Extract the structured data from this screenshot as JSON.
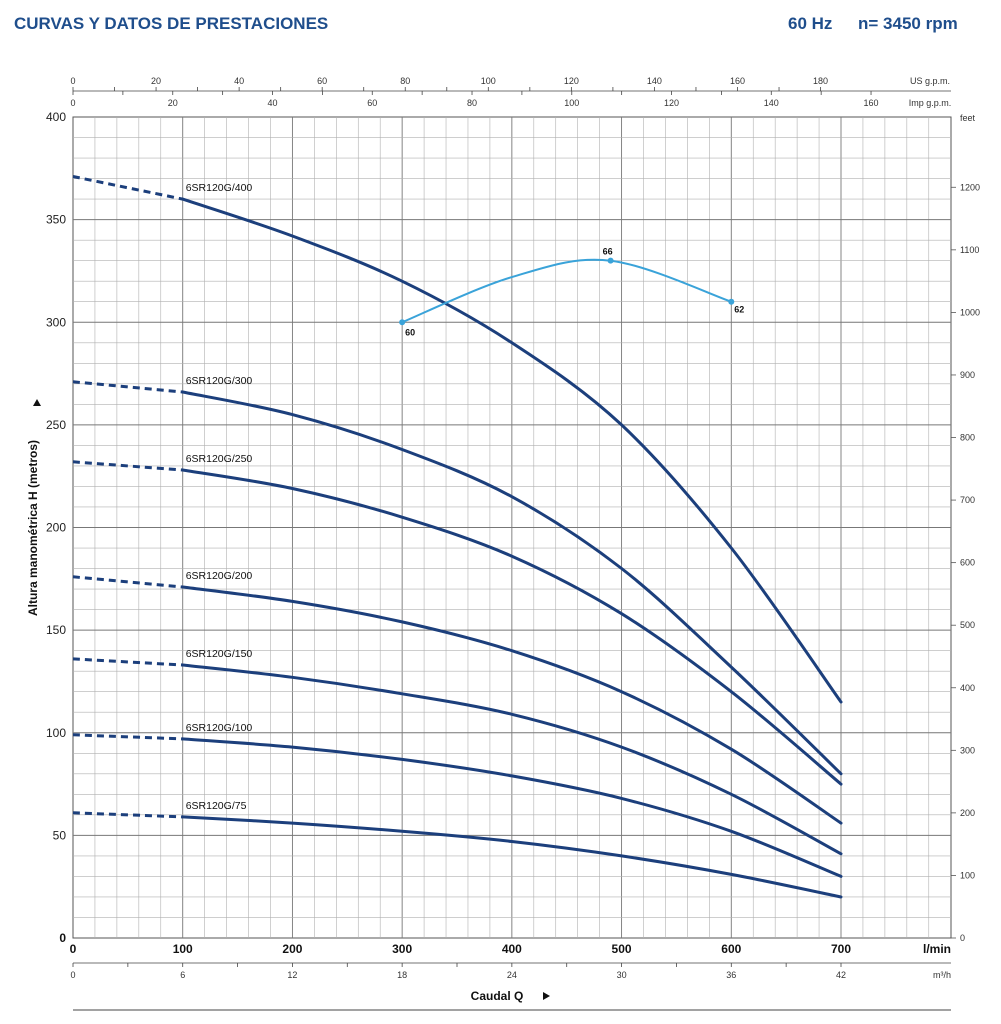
{
  "header": {
    "title": "CURVAS Y DATOS DE PRESTACIONES",
    "frequency": "60 Hz",
    "speed": "n= 3450 rpm"
  },
  "chart_data": {
    "type": "line",
    "xlabel": "Caudal  Q",
    "ylabel": "Altura manométrica H (metros)",
    "x_unit": "l/min",
    "xlim": [
      0,
      700
    ],
    "ylim": [
      0,
      400
    ],
    "x_ticks": [
      0,
      100,
      200,
      300,
      400,
      500,
      600,
      700
    ],
    "y_ticks": [
      0,
      50,
      100,
      150,
      200,
      250,
      300,
      350,
      400
    ],
    "secondary_axes": {
      "m3h": {
        "unit": "m³/h",
        "ticks": [
          0,
          6,
          12,
          18,
          24,
          30,
          36,
          42
        ]
      },
      "us_gpm": {
        "unit": "US g.p.m.",
        "ticks": [
          0,
          20,
          40,
          60,
          80,
          100,
          120,
          140,
          160,
          180
        ]
      },
      "imp_gpm": {
        "unit": "Imp g.p.m.",
        "ticks": [
          0,
          20,
          40,
          60,
          80,
          100,
          120,
          140,
          160
        ]
      },
      "feet": {
        "unit": "feet",
        "ticks": [
          0,
          100,
          200,
          300,
          400,
          500,
          600,
          700,
          800,
          900,
          1000,
          1100,
          1200
        ]
      }
    },
    "series": [
      {
        "name": "6SR120G/400",
        "x": [
          0,
          100,
          200,
          300,
          400,
          500,
          600,
          700
        ],
        "y": [
          371,
          360,
          342,
          320,
          290,
          250,
          190,
          115
        ]
      },
      {
        "name": "6SR120G/300",
        "x": [
          0,
          100,
          200,
          300,
          400,
          500,
          600,
          700
        ],
        "y": [
          271,
          266,
          255,
          238,
          215,
          180,
          132,
          80
        ]
      },
      {
        "name": "6SR120G/250",
        "x": [
          0,
          100,
          200,
          300,
          400,
          500,
          600,
          700
        ],
        "y": [
          232,
          228,
          219,
          205,
          186,
          158,
          120,
          75
        ]
      },
      {
        "name": "6SR120G/200",
        "x": [
          0,
          100,
          200,
          300,
          400,
          500,
          600,
          700
        ],
        "y": [
          176,
          171,
          164,
          154,
          140,
          120,
          92,
          56
        ]
      },
      {
        "name": "6SR120G/150",
        "x": [
          0,
          100,
          200,
          300,
          400,
          500,
          600,
          700
        ],
        "y": [
          136,
          133,
          127,
          119,
          109,
          93,
          70,
          41
        ]
      },
      {
        "name": "6SR120G/100",
        "x": [
          0,
          100,
          200,
          300,
          400,
          500,
          600,
          700
        ],
        "y": [
          99,
          97,
          93,
          87,
          79,
          68,
          52,
          30
        ]
      },
      {
        "name": "6SR120G/75",
        "x": [
          0,
          100,
          200,
          300,
          400,
          500,
          600,
          700
        ],
        "y": [
          61,
          59,
          56,
          52,
          47,
          40,
          31,
          20
        ]
      }
    ],
    "efficiency_curve": {
      "x": [
        300,
        400,
        490,
        600
      ],
      "y": [
        300,
        322,
        330,
        310
      ],
      "labels": [
        "60",
        "66",
        "62"
      ],
      "label_x": [
        300,
        490,
        600
      ],
      "label_y": [
        300,
        330,
        310
      ]
    },
    "colors": {
      "curve": "#1c3f7c",
      "efficiency": "#3aa3d9",
      "grid": "#9a9a9a",
      "header": "#1f4e8c"
    }
  }
}
